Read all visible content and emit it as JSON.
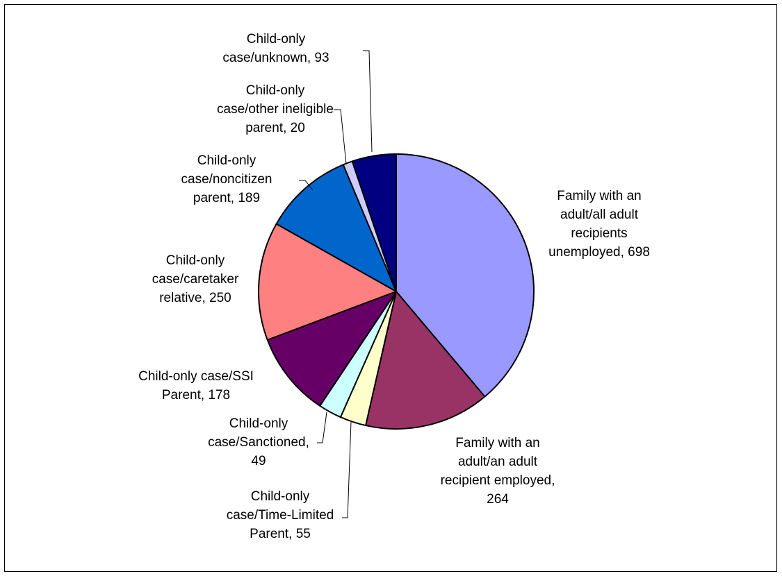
{
  "chart_data": {
    "type": "pie",
    "title": "",
    "slices": [
      {
        "label_lines": [
          "Family with an",
          "adult/all adult",
          "recipients",
          "unemployed,  698"
        ],
        "value": 698,
        "color": "#9999ff"
      },
      {
        "label_lines": [
          "Family with an",
          "adult/an adult",
          "recipient employed,",
          "264"
        ],
        "value": 264,
        "color": "#993366"
      },
      {
        "label_lines": [
          "Child-only",
          "case/Time-Limited",
          "Parent,  55"
        ],
        "value": 55,
        "color": "#ffffcc"
      },
      {
        "label_lines": [
          "Child-only",
          "case/Sanctioned,",
          "49"
        ],
        "value": 49,
        "color": "#ccffff"
      },
      {
        "label_lines": [
          "Child-only case/SSI",
          "Parent,  178"
        ],
        "value": 178,
        "color": "#660066"
      },
      {
        "label_lines": [
          "Child-only",
          "case/caretaker",
          "relative,  250"
        ],
        "value": 250,
        "color": "#ff8080"
      },
      {
        "label_lines": [
          "Child-only",
          "case/noncitizen",
          "parent,  189"
        ],
        "value": 189,
        "color": "#0066cc"
      },
      {
        "label_lines": [
          "Child-only",
          "case/other ineligible",
          "parent,  20"
        ],
        "value": 20,
        "color": "#ccccff"
      },
      {
        "label_lines": [
          "Child-only",
          "case/unknown,  93"
        ],
        "value": 93,
        "color": "#000080"
      }
    ],
    "start_angle": "12 o'clock",
    "direction": "clockwise",
    "legend": "none",
    "labels": "outside with leader lines"
  }
}
